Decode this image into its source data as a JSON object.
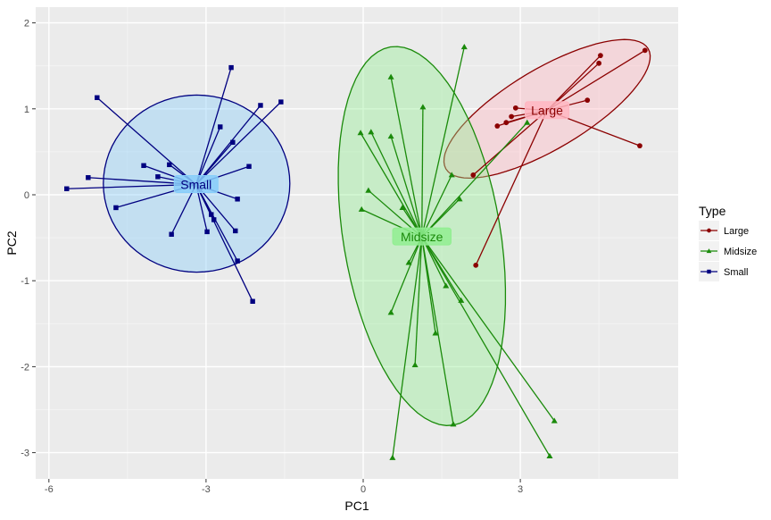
{
  "chart_data": {
    "type": "scatter",
    "xlabel": "PC1",
    "ylabel": "PC2",
    "xlim": [
      -6.3,
      6.0
    ],
    "ylim": [
      -3.2,
      2.3
    ],
    "xticks": [
      -6,
      -3,
      0,
      3
    ],
    "yticks": [
      2,
      1,
      0,
      -1,
      -2,
      -3
    ],
    "grid": true,
    "legend": {
      "title": "Type",
      "placement": "right"
    },
    "series": [
      {
        "name": "Large",
        "color": "#8B0000",
        "fill": "#FFB6C1",
        "marker": "circle",
        "center": [
          3.51,
          0.98
        ],
        "ellipse": {
          "center": [
            3.51,
            1.0
          ],
          "axis_a": [
            1.93,
            0.7
          ],
          "axis_b": [
            0.39,
            -0.4
          ]
        },
        "points": [
          [
            4.53,
            1.62
          ],
          [
            4.5,
            1.53
          ],
          [
            5.38,
            1.68
          ],
          [
            4.28,
            1.1
          ],
          [
            2.91,
            1.01
          ],
          [
            2.83,
            0.91
          ],
          [
            2.73,
            0.84
          ],
          [
            2.56,
            0.8
          ],
          [
            5.28,
            0.57
          ],
          [
            2.1,
            0.23
          ],
          [
            2.15,
            -0.82
          ]
        ]
      },
      {
        "name": "Midsize",
        "color": "#1A8A0A",
        "fill": "#90EE90",
        "marker": "triangle",
        "center": [
          1.12,
          -0.49
        ],
        "ellipse": {
          "center": [
            1.12,
            -0.48
          ],
          "axis_a": [
            0.6,
            -2.2
          ],
          "axis_b": [
            1.48,
            0.15
          ]
        },
        "points": [
          [
            1.93,
            1.72
          ],
          [
            0.53,
            1.37
          ],
          [
            1.14,
            1.02
          ],
          [
            -0.05,
            0.72
          ],
          [
            0.15,
            0.73
          ],
          [
            0.53,
            0.68
          ],
          [
            1.69,
            0.23
          ],
          [
            0.1,
            0.05
          ],
          [
            -0.03,
            -0.17
          ],
          [
            0.75,
            -0.15
          ],
          [
            1.84,
            -0.05
          ],
          [
            3.13,
            0.84
          ],
          [
            0.87,
            -0.79
          ],
          [
            0.53,
            -1.37
          ],
          [
            1.58,
            -1.06
          ],
          [
            1.87,
            -1.23
          ],
          [
            1.38,
            -1.61
          ],
          [
            0.99,
            -1.98
          ],
          [
            1.72,
            -2.67
          ],
          [
            3.65,
            -2.63
          ],
          [
            3.56,
            -3.04
          ],
          [
            0.56,
            -3.06
          ]
        ]
      },
      {
        "name": "Small",
        "color": "#000080",
        "fill": "#87CEFA",
        "marker": "square",
        "center": [
          -3.19,
          0.12
        ],
        "ellipse": {
          "center": [
            -3.18,
            0.13
          ],
          "axis_a": [
            1.78,
            0
          ],
          "axis_b": [
            0,
            1.03
          ]
        },
        "points": [
          [
            -2.52,
            1.48
          ],
          [
            -5.08,
            1.13
          ],
          [
            -1.96,
            1.04
          ],
          [
            -1.57,
            1.08
          ],
          [
            -2.73,
            0.79
          ],
          [
            -2.49,
            0.61
          ],
          [
            -4.19,
            0.34
          ],
          [
            -3.7,
            0.35
          ],
          [
            -3.92,
            0.21
          ],
          [
            -2.18,
            0.33
          ],
          [
            -5.25,
            0.2
          ],
          [
            -5.66,
            0.07
          ],
          [
            -4.72,
            -0.15
          ],
          [
            -2.4,
            -0.05
          ],
          [
            -3.66,
            -0.46
          ],
          [
            -2.98,
            -0.43
          ],
          [
            -2.9,
            -0.23
          ],
          [
            -2.85,
            -0.29
          ],
          [
            -2.44,
            -0.42
          ],
          [
            -2.4,
            -0.77
          ],
          [
            -2.11,
            -1.24
          ]
        ]
      }
    ]
  }
}
